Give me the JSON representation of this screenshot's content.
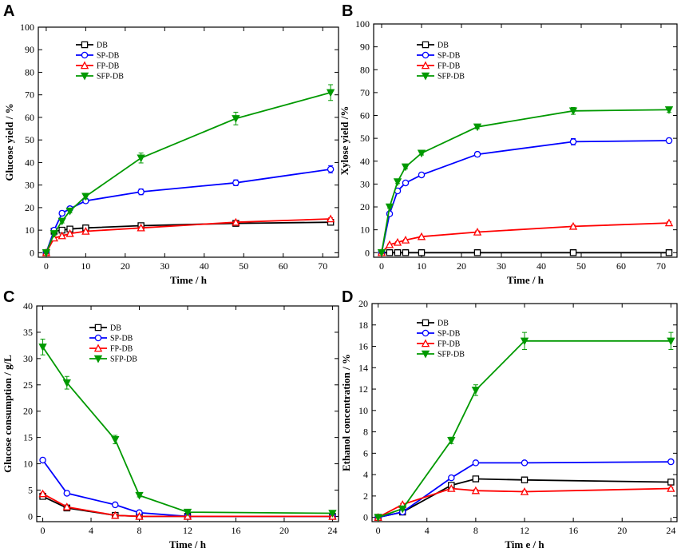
{
  "series_styles": {
    "DB": {
      "color": "#000000",
      "marker": "square"
    },
    "SP-DB": {
      "color": "#0000ff",
      "marker": "circle"
    },
    "FP-DB": {
      "color": "#ff0000",
      "marker": "triangle-up"
    },
    "SFP-DB": {
      "color": "#009900",
      "marker": "triangle-down-filled"
    }
  },
  "chart_data": [
    {
      "panel": "A",
      "type": "line",
      "xlabel": "Time / h",
      "ylabel": "Glucose yield / %",
      "xlim": [
        -2,
        74
      ],
      "ylim": [
        -2,
        100
      ],
      "xticks": [
        0,
        10,
        20,
        30,
        40,
        50,
        60,
        70
      ],
      "yticks": [
        0,
        10,
        20,
        30,
        40,
        50,
        60,
        70,
        80,
        90,
        100
      ],
      "legend_placement": "top-left",
      "x": [
        0,
        2,
        4,
        6,
        10,
        24,
        48,
        72
      ],
      "series": [
        {
          "name": "DB",
          "values": [
            0,
            9.5,
            10,
            10.5,
            11,
            12,
            13,
            13.5
          ],
          "errors": [
            0,
            0.5,
            0.5,
            0.5,
            0.5,
            0.5,
            0.5,
            0.5
          ]
        },
        {
          "name": "SP-DB",
          "values": [
            0,
            10,
            17.5,
            19.5,
            23,
            27,
            31,
            37
          ],
          "errors": [
            0,
            0.8,
            1,
            1,
            1,
            1.3,
            1.3,
            1.6
          ]
        },
        {
          "name": "FP-DB",
          "values": [
            0,
            6.5,
            7.5,
            8.5,
            9.5,
            11,
            13.5,
            15
          ],
          "errors": [
            0,
            0.5,
            0.5,
            0.5,
            0.5,
            0.5,
            0.5,
            0.5
          ]
        },
        {
          "name": "SFP-DB",
          "values": [
            0,
            8.5,
            14,
            18.5,
            25,
            42,
            59.5,
            71
          ],
          "errors": [
            0,
            0.8,
            0.8,
            0.8,
            1.2,
            2.2,
            2.8,
            3.5
          ]
        }
      ]
    },
    {
      "panel": "B",
      "type": "line",
      "xlabel": "Time / h",
      "ylabel": "Xylose yield /%",
      "xlim": [
        -2,
        74
      ],
      "ylim": [
        -2,
        100
      ],
      "xticks": [
        0,
        10,
        20,
        30,
        40,
        50,
        60,
        70
      ],
      "yticks": [
        0,
        10,
        20,
        30,
        40,
        50,
        60,
        70,
        80,
        90,
        100
      ],
      "legend_placement": "top-left",
      "x": [
        0,
        2,
        4,
        6,
        10,
        24,
        48,
        72
      ],
      "series": [
        {
          "name": "DB",
          "values": [
            0,
            0,
            0,
            0,
            0,
            0,
            0,
            0
          ],
          "errors": [
            0,
            0,
            0,
            0,
            0,
            0,
            0,
            0
          ]
        },
        {
          "name": "SP-DB",
          "values": [
            0,
            17,
            27,
            30.5,
            34,
            43,
            48.5,
            49
          ],
          "errors": [
            0,
            0.6,
            0.8,
            0.8,
            0.8,
            1,
            1.4,
            1
          ]
        },
        {
          "name": "FP-DB",
          "values": [
            0,
            3.5,
            4.5,
            5.5,
            7,
            9,
            11.5,
            13
          ],
          "errors": [
            0,
            0.3,
            0.3,
            0.3,
            0.3,
            0.5,
            0.5,
            0.5
          ]
        },
        {
          "name": "SFP-DB",
          "values": [
            0,
            20,
            31,
            37.5,
            43.5,
            55,
            62,
            62.5
          ],
          "errors": [
            0,
            0.5,
            0.8,
            0.8,
            0.8,
            0.8,
            1.5,
            1.2
          ]
        }
      ]
    },
    {
      "panel": "C",
      "type": "line",
      "xlabel": "Time / h",
      "ylabel": "Glucose consumption / g/L",
      "xlim": [
        -0.5,
        24.5
      ],
      "ylim": [
        -1,
        40
      ],
      "xticks": [
        0,
        4,
        8,
        12,
        16,
        20,
        24
      ],
      "yticks": [
        0,
        5,
        10,
        15,
        20,
        25,
        30,
        35,
        40
      ],
      "legend_placement": "top-center",
      "x": [
        0,
        2,
        6,
        8,
        12,
        24
      ],
      "series": [
        {
          "name": "DB",
          "values": [
            3.8,
            1.6,
            0.2,
            0,
            0,
            0
          ],
          "errors": [
            0.3,
            0.2,
            0.1,
            0,
            0,
            0
          ]
        },
        {
          "name": "SP-DB",
          "values": [
            10.7,
            4.4,
            2.2,
            0.7,
            0,
            0
          ],
          "errors": [
            0.4,
            0.3,
            0.2,
            0.1,
            0,
            0
          ]
        },
        {
          "name": "FP-DB",
          "values": [
            4.3,
            1.8,
            0.2,
            0,
            0,
            0
          ],
          "errors": [
            0.3,
            0.2,
            0.1,
            0,
            0,
            0
          ]
        },
        {
          "name": "SFP-DB",
          "values": [
            32.2,
            25.4,
            14.6,
            4,
            0.8,
            0.6
          ],
          "errors": [
            1.5,
            1.2,
            0.8,
            0.3,
            0.1,
            0.1
          ]
        }
      ]
    },
    {
      "panel": "D",
      "type": "line",
      "xlabel": "Tim e / h",
      "ylabel": "Ethanol concentration / %",
      "xlim": [
        -0.5,
        24.5
      ],
      "ylim": [
        -0.4,
        20
      ],
      "xticks": [
        0,
        4,
        8,
        12,
        16,
        20,
        24
      ],
      "yticks": [
        0,
        2,
        4,
        6,
        8,
        10,
        12,
        14,
        16,
        18,
        20
      ],
      "legend_placement": "top-left",
      "x": [
        0,
        2,
        6,
        8,
        12,
        24
      ],
      "series": [
        {
          "name": "DB",
          "values": [
            0,
            0.5,
            3,
            3.6,
            3.5,
            3.3
          ],
          "errors": [
            0,
            0.1,
            0.1,
            0.1,
            0.1,
            0.1
          ]
        },
        {
          "name": "SP-DB",
          "values": [
            0,
            0.5,
            3.7,
            5.1,
            5.1,
            5.2
          ],
          "errors": [
            0,
            0.1,
            0.1,
            0.1,
            0.1,
            0.1
          ]
        },
        {
          "name": "FP-DB",
          "values": [
            0,
            1.2,
            2.7,
            2.5,
            2.4,
            2.7
          ],
          "errors": [
            0,
            0.1,
            0.1,
            0.1,
            0.1,
            0.1
          ]
        },
        {
          "name": "SFP-DB",
          "values": [
            0,
            0.8,
            7.2,
            11.9,
            16.5,
            16.5
          ],
          "errors": [
            0,
            0.1,
            0.3,
            0.5,
            0.8,
            0.8
          ]
        }
      ]
    }
  ]
}
